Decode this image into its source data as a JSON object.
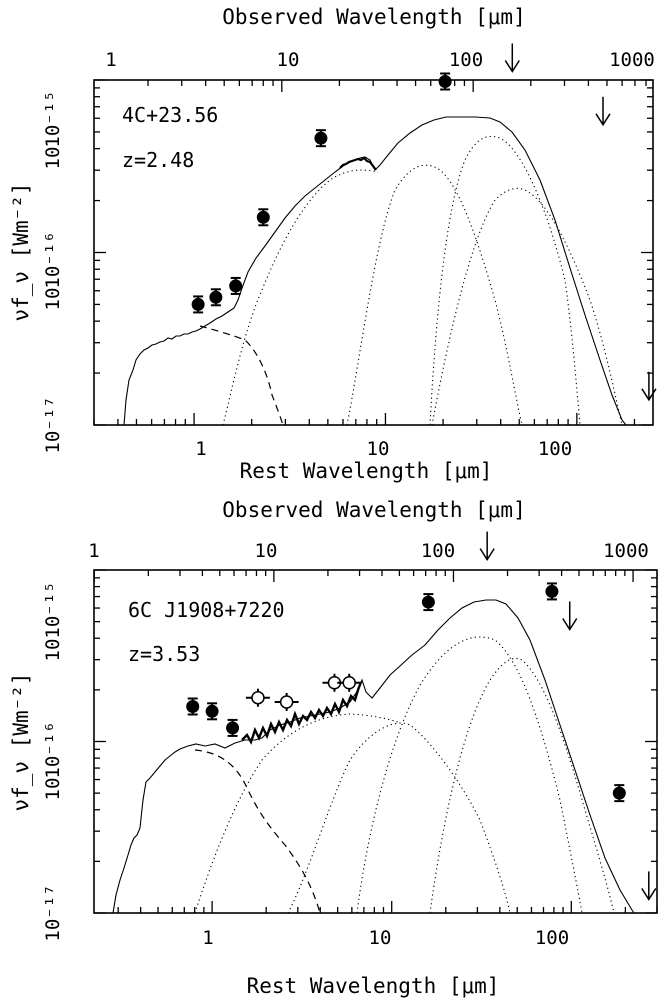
{
  "chart_data": [
    {
      "type": "scatter",
      "title": "",
      "annotations": [
        "4C+23.56",
        "z=2.48"
      ],
      "xlabel_bottom": "Rest Wavelength [μm]",
      "xlabel_top": "Observed Wavelength [μm]",
      "ylabel": "νf_ν [Wm⁻²]",
      "x_scale": "log",
      "y_scale": "log",
      "xlim": [
        0.3,
        250
      ],
      "ylim": [
        1e-17,
        1e-15
      ],
      "top_axis_redshift": 2.48,
      "xticks_bottom": [
        "1",
        "10",
        "100"
      ],
      "xticks_top": [
        "1",
        "10",
        "100",
        "1000"
      ],
      "yticks": [
        "10",
        "10⁻¹⁶",
        "10",
        "10⁻¹⁵",
        "10⁻¹⁷"
      ],
      "detections": [
        {
          "x": 1.05,
          "y": 5e-17
        },
        {
          "x": 1.3,
          "y": 5.5e-17
        },
        {
          "x": 1.65,
          "y": 6.4e-17
        },
        {
          "x": 2.3,
          "y": 1.6e-16
        },
        {
          "x": 4.6,
          "y": 4.6e-16
        },
        {
          "x": 20.5,
          "y": 9.8e-16
        }
      ],
      "upper_limits": [
        {
          "x": 46,
          "y": 1.12e-15
        },
        {
          "x": 137,
          "y": 5.5e-16
        },
        {
          "x": 238,
          "y": 1.4e-17
        }
      ],
      "components": [
        "stellar (dashed)",
        "hot dust (dotted)",
        "warm dust (dotted)",
        "cool dust (dotted)",
        "cold dust (dotted)",
        "total (solid)"
      ]
    },
    {
      "type": "scatter",
      "title": "",
      "annotations": [
        "6C J1908+7220",
        "z=3.53"
      ],
      "xlabel_bottom": "Rest Wavelength [μm]",
      "xlabel_top": "Observed Wavelength [μm]",
      "ylabel": "νf_ν [Wm⁻²]",
      "x_scale": "log",
      "y_scale": "log",
      "xlim": [
        0.22,
        300
      ],
      "ylim": [
        1e-17,
        1e-15
      ],
      "top_axis_redshift": 3.53,
      "xticks_bottom": [
        "1",
        "10",
        "100"
      ],
      "xticks_top": [
        "1",
        "10",
        "100",
        "1000"
      ],
      "yticks": [
        "10",
        "10⁻¹⁶",
        "10",
        "10⁻¹⁵",
        "10⁻¹⁷"
      ],
      "detections": [
        {
          "x": 0.78,
          "y": 1.6e-16
        },
        {
          "x": 1.0,
          "y": 1.5e-16
        },
        {
          "x": 1.3,
          "y": 1.2e-16
        },
        {
          "x": 16,
          "y": 6.5e-16
        },
        {
          "x": 78,
          "y": 7.5e-16
        },
        {
          "x": 185,
          "y": 5e-17
        }
      ],
      "open_points": [
        {
          "x": 1.8,
          "y": 1.8e-16
        },
        {
          "x": 2.6,
          "y": 1.7e-16
        },
        {
          "x": 4.8,
          "y": 2.2e-16
        },
        {
          "x": 5.8,
          "y": 2.2e-16
        }
      ],
      "upper_limits": [
        {
          "x": 34,
          "y": 1.15e-15
        },
        {
          "x": 98,
          "y": 4.5e-16
        },
        {
          "x": 270,
          "y": 1.2e-17
        }
      ],
      "components": [
        "stellar (dashed)",
        "hot dust (dotted)",
        "warm dust (dotted)",
        "cool dust (dotted)",
        "cold dust (dotted)",
        "total (solid)",
        "IRS spectrum (bold)"
      ]
    }
  ]
}
